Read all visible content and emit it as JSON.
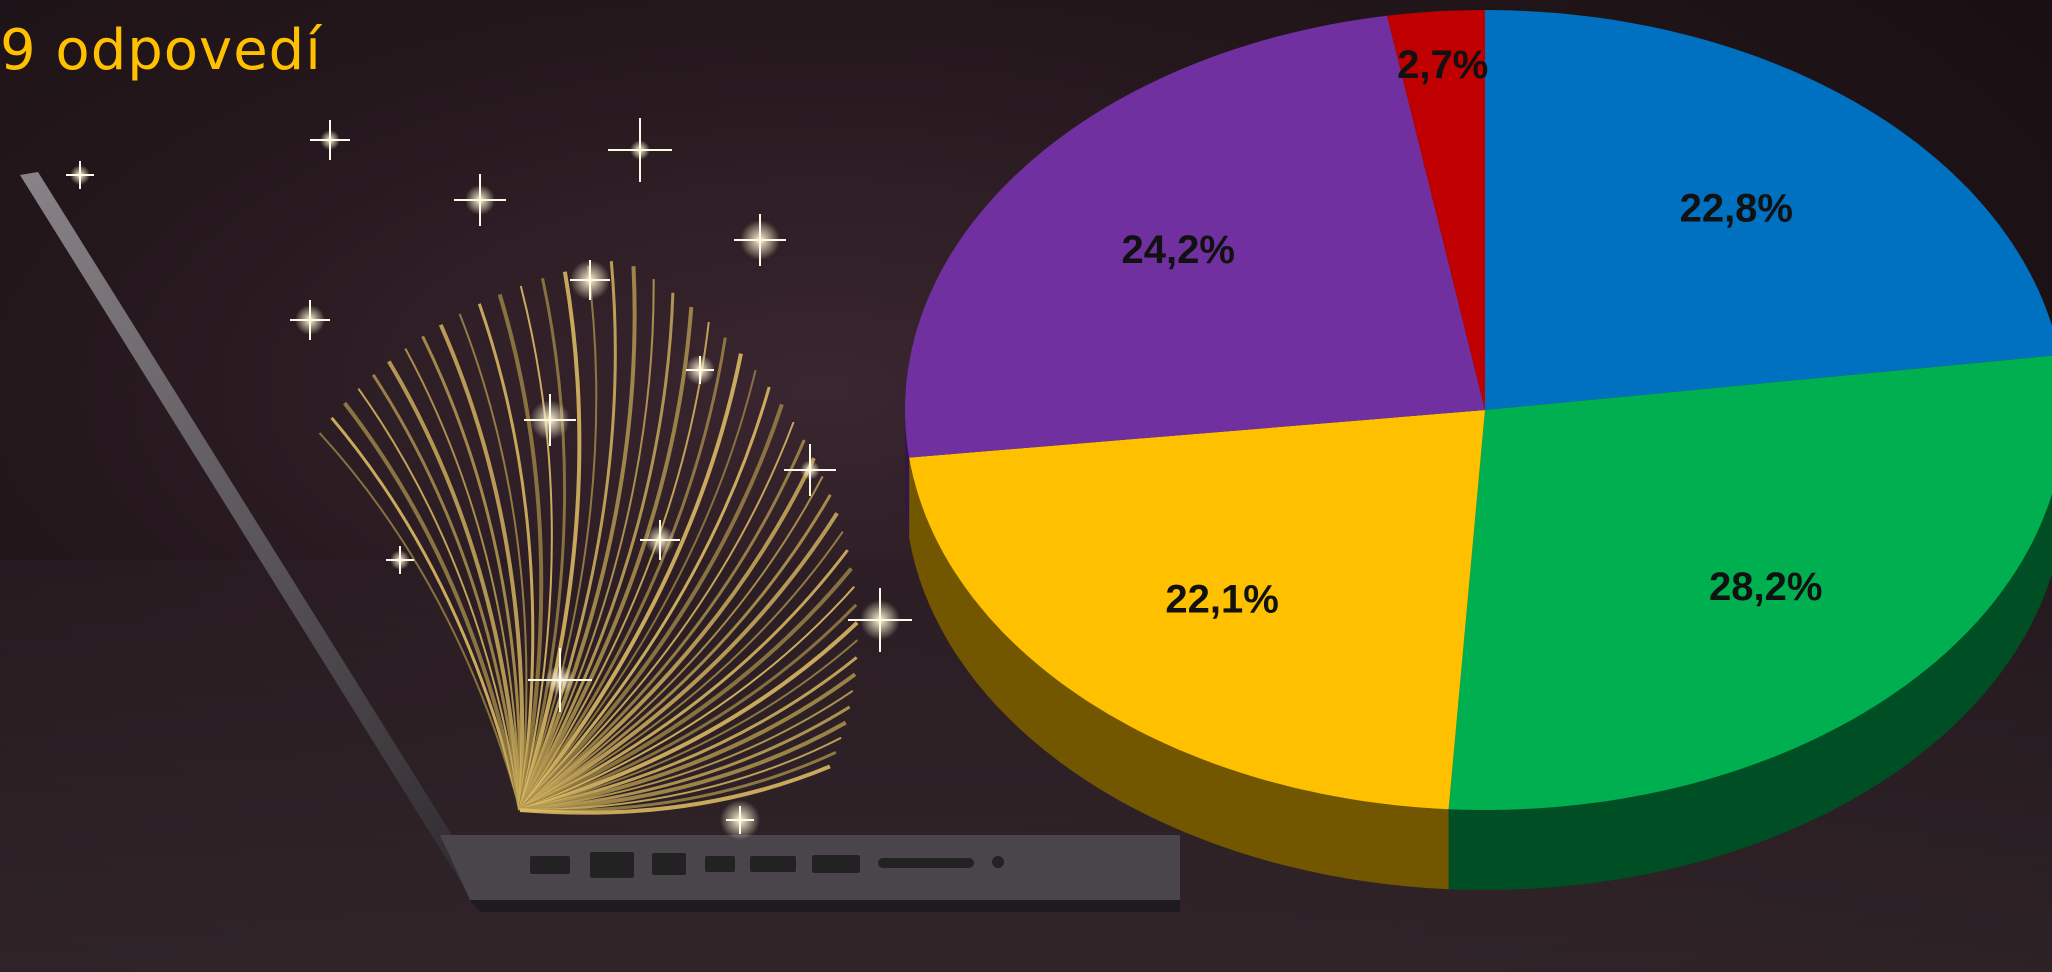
{
  "heading": "9 odpovedí",
  "colors": {
    "heading": "#ffc000",
    "background": "#1c1216"
  },
  "decoration": {
    "image": "laptop-book-icon",
    "description_items": [
      "laptop",
      "open-book",
      "sparkles"
    ]
  },
  "chart_data": {
    "type": "pie",
    "title": "",
    "start_angle_deg": 0,
    "direction": "clockwise",
    "style": "3d-tilted",
    "slices": [
      {
        "label": "22,8%",
        "value": 22.8,
        "color": "#0070c0"
      },
      {
        "label": "28,2%",
        "value": 28.2,
        "color": "#00b050"
      },
      {
        "label": "22,1%",
        "value": 22.1,
        "color": "#ffc000"
      },
      {
        "label": "24,2%",
        "value": 24.2,
        "color": "#7030a0"
      },
      {
        "label": "2,7%",
        "value": 2.7,
        "color": "#c00000"
      }
    ]
  }
}
